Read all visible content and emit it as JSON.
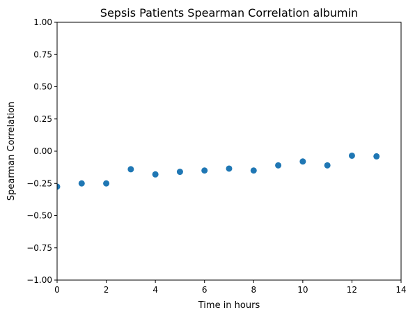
{
  "chart_data": {
    "type": "scatter",
    "title": "Sepsis Patients Spearman Correlation albumin",
    "xlabel": "Time in hours",
    "ylabel": "Spearman Correlation",
    "xlim": [
      0,
      14
    ],
    "ylim": [
      -1.0,
      1.0
    ],
    "xticks": [
      "0",
      "2",
      "4",
      "6",
      "8",
      "10",
      "12",
      "14"
    ],
    "yticks": [
      "1.00",
      "0.75",
      "0.50",
      "0.25",
      "0.00",
      "−0.25",
      "−0.50",
      "−0.75",
      "−1.00"
    ],
    "grid": false,
    "series": [
      {
        "color": "#1f77b4",
        "x": [
          0,
          1,
          2,
          3,
          4,
          5,
          6,
          7,
          8,
          9,
          10,
          11,
          12,
          13
        ],
        "y": [
          -0.275,
          -0.25,
          -0.25,
          -0.14,
          -0.18,
          -0.16,
          -0.15,
          -0.135,
          -0.15,
          -0.11,
          -0.08,
          -0.11,
          -0.035,
          -0.04
        ]
      }
    ]
  }
}
